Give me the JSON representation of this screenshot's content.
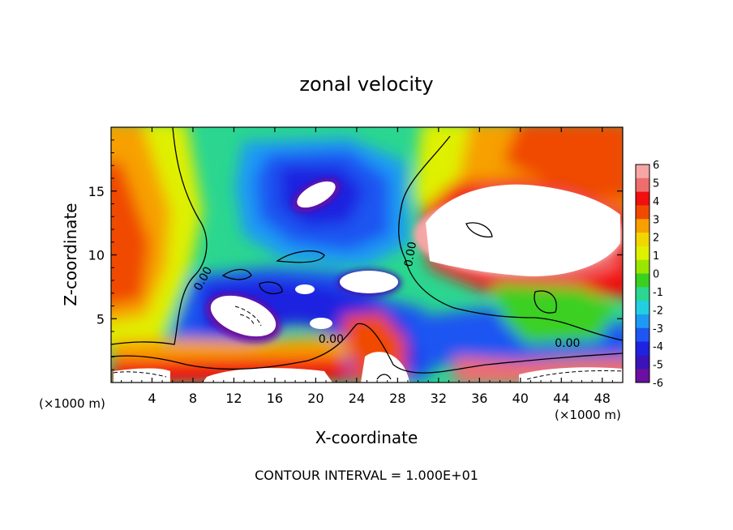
{
  "chart_data": {
    "type": "heatmap",
    "title": "zonal velocity",
    "xlabel": "X-coordinate",
    "ylabel": "Z-coordinate",
    "x_unit_label": "(×1000 m)",
    "x_unit_label_right": "(×1000 m)",
    "x_ticks": [
      4,
      8,
      12,
      16,
      20,
      24,
      28,
      32,
      36,
      40,
      44,
      48
    ],
    "y_ticks": [
      5,
      10,
      15
    ],
    "xlim": [
      0,
      50
    ],
    "ylim": [
      0,
      20
    ],
    "colorbar": {
      "ticks": [
        6,
        5,
        4,
        3,
        2,
        1,
        0,
        -1,
        -2,
        -3,
        -4,
        -5,
        -6
      ],
      "colors": [
        "#f7a6a6",
        "#ef6d6d",
        "#f20f0f",
        "#f04a00",
        "#f7a000",
        "#f2d600",
        "#dff000",
        "#9ae600",
        "#3ad020",
        "#2bd690",
        "#22cfe0",
        "#1e9af5",
        "#1f55f2",
        "#1d23e0",
        "#3a14b8",
        "#6a0fa0"
      ]
    },
    "contours": [
      {
        "level": "0.00",
        "x": 9.3,
        "z": 8.0
      },
      {
        "level": "0.00",
        "x": 21.5,
        "z": 3.1
      },
      {
        "level": "0.00",
        "x": 29.6,
        "z": 10.0
      },
      {
        "level": "0.00",
        "x": 44.6,
        "z": 2.8
      }
    ],
    "annotation": "CONTOUR INTERVAL = 1.000E+01"
  }
}
